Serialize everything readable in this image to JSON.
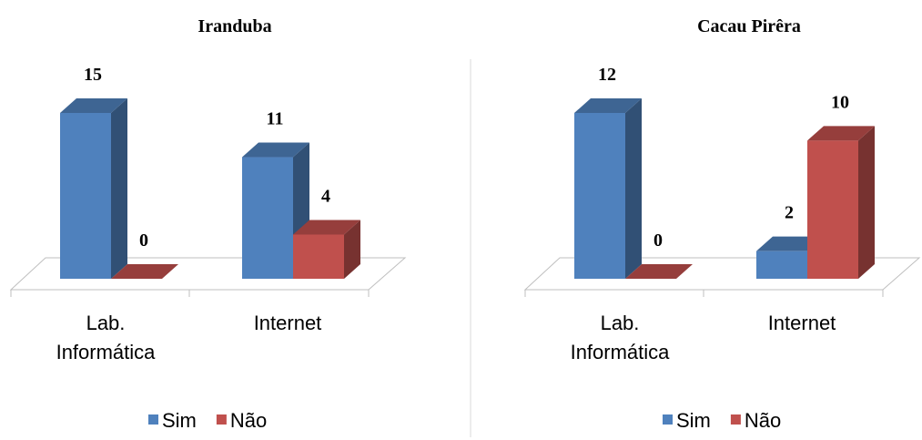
{
  "chart_data": [
    {
      "type": "bar3d",
      "title": "Iranduba",
      "categories": [
        "Lab. Informática",
        "Internet"
      ],
      "series": [
        {
          "name": "Sim",
          "color": "#4f81bd",
          "values": [
            15,
            11
          ]
        },
        {
          "name": "Não",
          "color": "#c0504d",
          "values": [
            0,
            4
          ]
        }
      ],
      "legend": "bottom"
    },
    {
      "type": "bar3d",
      "title": "Cacau Pirêra",
      "categories": [
        "Lab. Informática",
        "Internet"
      ],
      "series": [
        {
          "name": "Sim",
          "color": "#4f81bd",
          "values": [
            12,
            2
          ]
        },
        {
          "name": "Não",
          "color": "#c0504d",
          "values": [
            0,
            10
          ]
        }
      ],
      "legend": "bottom"
    }
  ]
}
